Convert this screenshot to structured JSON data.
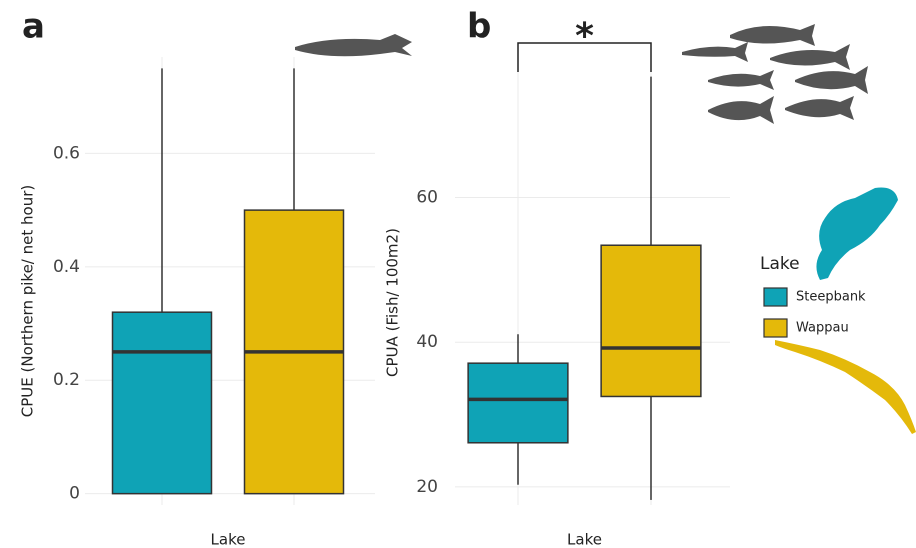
{
  "chart_data": [
    {
      "type": "box",
      "panel_label": "a",
      "y_label": "CPUE (Northern pike/ net hour)",
      "x_label": "Lake",
      "ylim": [
        -0.02,
        0.77
      ],
      "yticks": [
        0,
        0.2,
        0.4,
        0.6
      ],
      "grid": true,
      "series": [
        {
          "color": "#0fa3b6",
          "min": 0,
          "q1": 0,
          "median": 0.25,
          "q3": 0.32,
          "max": 0.75
        },
        {
          "color": "#e4b90a",
          "min": 0,
          "q1": 0,
          "median": 0.25,
          "q3": 0.5,
          "max": 0.75
        }
      ]
    },
    {
      "type": "box",
      "panel_label": "b",
      "y_label": "CPUA (Fish/ 100m2)",
      "x_label": "Lake",
      "ylim": [
        17.5,
        79
      ],
      "yticks": [
        20,
        40,
        60
      ],
      "grid": true,
      "annotation": "*",
      "legend_title": "Lake",
      "series": [
        {
          "name": "Steepbank",
          "color": "#0fa3b6",
          "min": 20.3,
          "q1": 26.1,
          "median": 32.1,
          "q3": 37.1,
          "max": 41.1
        },
        {
          "name": "Wappau",
          "color": "#e4b90a",
          "min": 18.2,
          "q1": 32.5,
          "median": 39.2,
          "q3": 53.4,
          "max": 76.7
        }
      ]
    }
  ]
}
